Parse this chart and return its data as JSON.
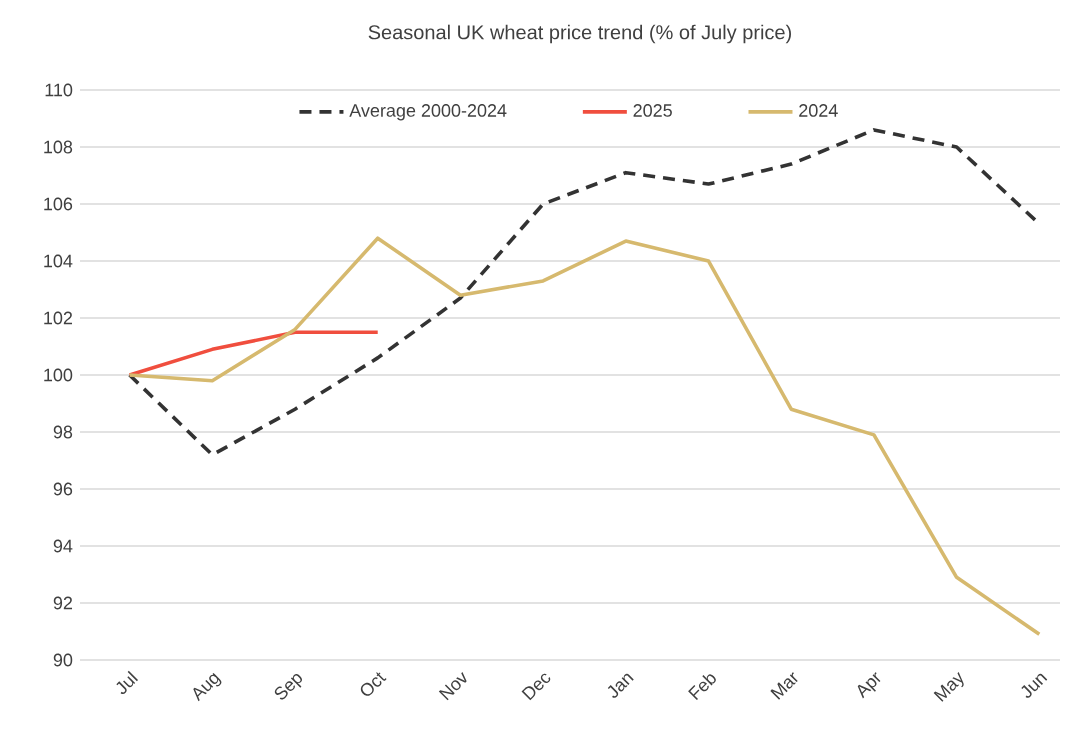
{
  "chart_data": {
    "type": "line",
    "title": "Seasonal UK wheat price trend (% of July price)",
    "categories": [
      "Jul",
      "Aug",
      "Sep",
      "Oct",
      "Nov",
      "Dec",
      "Jan",
      "Feb",
      "Mar",
      "Apr",
      "May",
      "Jun"
    ],
    "series": [
      {
        "name": "Average 2000-2024",
        "color": "#333333",
        "line_style": "dashed",
        "values": [
          100,
          97.2,
          98.8,
          100.6,
          102.7,
          106.0,
          107.1,
          106.7,
          107.4,
          108.6,
          108.0,
          105.3
        ]
      },
      {
        "name": "2025",
        "color": "#f04e3e",
        "values": [
          100,
          100.9,
          101.5,
          101.5,
          null,
          null,
          null,
          null,
          null,
          null,
          null,
          null
        ]
      },
      {
        "name": "2024",
        "color": "#d6b96e",
        "values": [
          100,
          99.8,
          101.6,
          104.8,
          102.8,
          103.3,
          104.7,
          104.0,
          98.8,
          97.9,
          92.9,
          90.9
        ]
      }
    ],
    "ylim": [
      90,
      110
    ],
    "yticks": [
      90,
      92,
      94,
      96,
      98,
      100,
      102,
      104,
      106,
      108,
      110
    ],
    "grid": "y",
    "legend": "top",
    "marker": "none"
  }
}
